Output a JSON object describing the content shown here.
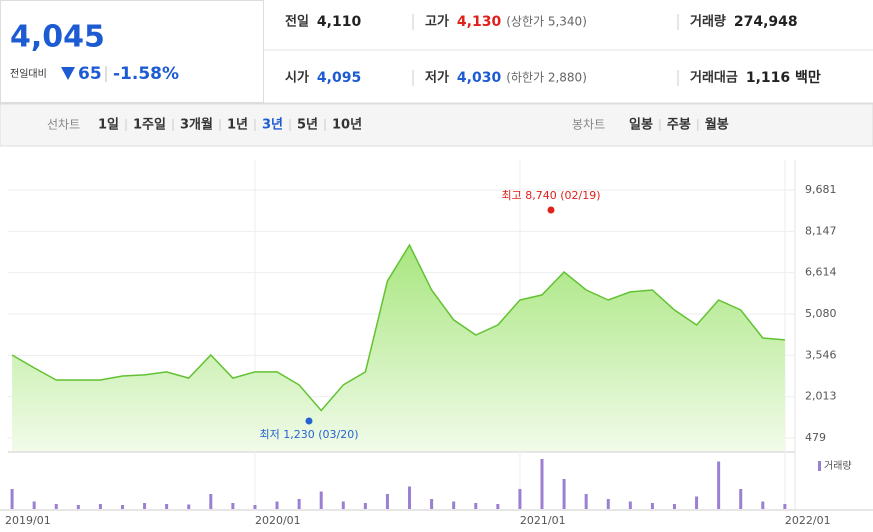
{
  "header": {
    "price": "4,045",
    "change_label": "전일대비",
    "change": "65",
    "change_pct": "-1.58%",
    "rows": [
      [
        {
          "label": "전일",
          "value": "4,110"
        },
        {
          "label": "고가",
          "value": "4,130",
          "extra": "(상한가 5,340)"
        },
        {
          "label": "거래량",
          "value": "274,948"
        }
      ],
      [
        {
          "label": "시가",
          "value": "4,095"
        },
        {
          "label": "저가",
          "value": "4,030",
          "extra": "(하한가 2,880)"
        },
        {
          "label": "거래대금",
          "value": "1,116 백만"
        }
      ]
    ]
  },
  "tabs": {
    "line_label": "선차트",
    "periods": [
      "1일",
      "1주일",
      "3개월",
      "1년",
      "3년",
      "5년",
      "10년"
    ],
    "selected_period": 4,
    "candle_label": "봉차트",
    "candles": [
      "일봉",
      "주봉",
      "월봉"
    ]
  },
  "chart_data": {
    "type": "line",
    "x": [
      "2019/02",
      "2019/03",
      "2019/04",
      "2019/05",
      "2019/06",
      "2019/07",
      "2019/08",
      "2019/09",
      "2019/10",
      "2019/11",
      "2019/12",
      "2020/01",
      "2020/02",
      "2020/03",
      "2020/04",
      "2020/05",
      "2020/06",
      "2020/07",
      "2020/08",
      "2020/09",
      "2020/10",
      "2020/11",
      "2020/12",
      "2021/01",
      "2021/02",
      "2021/03",
      "2021/04",
      "2021/05",
      "2021/06",
      "2021/07",
      "2021/08",
      "2021/09",
      "2021/10",
      "2021/11",
      "2021/12",
      "2022/01"
    ],
    "values": [
      3560,
      3080,
      2630,
      2630,
      2630,
      2780,
      2820,
      2930,
      2700,
      3560,
      2700,
      2930,
      2930,
      2450,
      1500,
      2450,
      2930,
      6300,
      7640,
      5970,
      4860,
      4300,
      4670,
      5600,
      5790,
      6640,
      5970,
      5600,
      5900,
      5970,
      5230,
      4670,
      5600,
      5230,
      4190,
      4120
    ],
    "color": "#62c232",
    "ylim": [
      479,
      9681
    ],
    "yticks": [
      {
        "value": 9681,
        "label": "9,681"
      },
      {
        "value": 8147,
        "label": "8,147"
      },
      {
        "value": 6614,
        "label": "6,614"
      },
      {
        "value": 5080,
        "label": "5,080"
      },
      {
        "value": 3546,
        "label": "3,546"
      },
      {
        "value": 2013,
        "label": "2,013"
      },
      479
    ],
    "xticks": [
      "2019/01",
      "2020/01",
      "2021/01",
      "2022/01"
    ],
    "grid": true,
    "annotations": [
      {
        "text": "최고 8,740 (02/19)",
        "color": "#e0201b"
      },
      {
        "text": "최저 1,230 (03/20)",
        "color": "#2563d0"
      }
    ],
    "volume": {
      "name": "거래량",
      "color": "#9b7fd1",
      "values": [
        40,
        15,
        10,
        8,
        10,
        8,
        12,
        10,
        9,
        30,
        12,
        8,
        15,
        20,
        35,
        15,
        12,
        30,
        45,
        20,
        15,
        12,
        10,
        40,
        100,
        60,
        30,
        20,
        15,
        12,
        10,
        25,
        95,
        40,
        15,
        10
      ]
    }
  }
}
